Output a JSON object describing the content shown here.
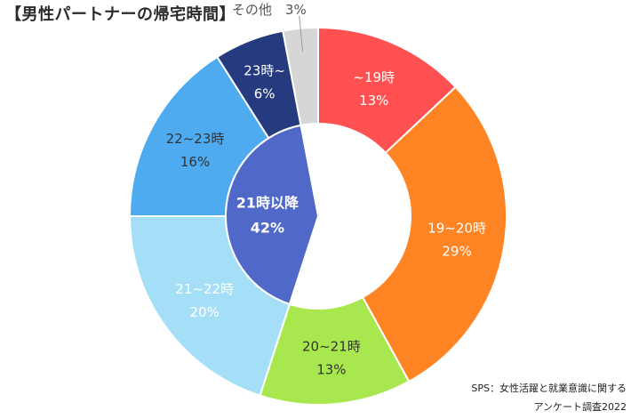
{
  "title": "【男性パートナーの帰宅時間】",
  "source_line1": "SPS：女性活躍と就業意識に関する",
  "source_line2": "アンケート調査2022",
  "chart_data": {
    "type": "pie",
    "subtype": "donut",
    "start": "top, clockwise",
    "slices": [
      {
        "label": "~19時",
        "value": 13,
        "color": "#ff5151",
        "text_color": "#ffffff"
      },
      {
        "label": "19~20時",
        "value": 29,
        "color": "#ff8424",
        "text_color": "#ffffff"
      },
      {
        "label": "20~21時",
        "value": 13,
        "color": "#a8e84e",
        "text_color": "#333333"
      },
      {
        "label": "21~22時",
        "value": 20,
        "color": "#a5dff7",
        "text_color": "#ffffff"
      },
      {
        "label": "22~23時",
        "value": 16,
        "color": "#4fabf0",
        "text_color": "#333333"
      },
      {
        "label": "23時~",
        "value": 6,
        "color": "#253a7f",
        "text_color": "#ffffff"
      },
      {
        "label": "その他",
        "value": 3,
        "color": "#d6d6d6",
        "text_color": "#555555"
      }
    ],
    "group": {
      "label": "21時以降",
      "value": 42,
      "color": "#5068c8",
      "text_color": "#ffffff",
      "members": [
        "21~22時",
        "22~23時",
        "23時~"
      ]
    }
  }
}
